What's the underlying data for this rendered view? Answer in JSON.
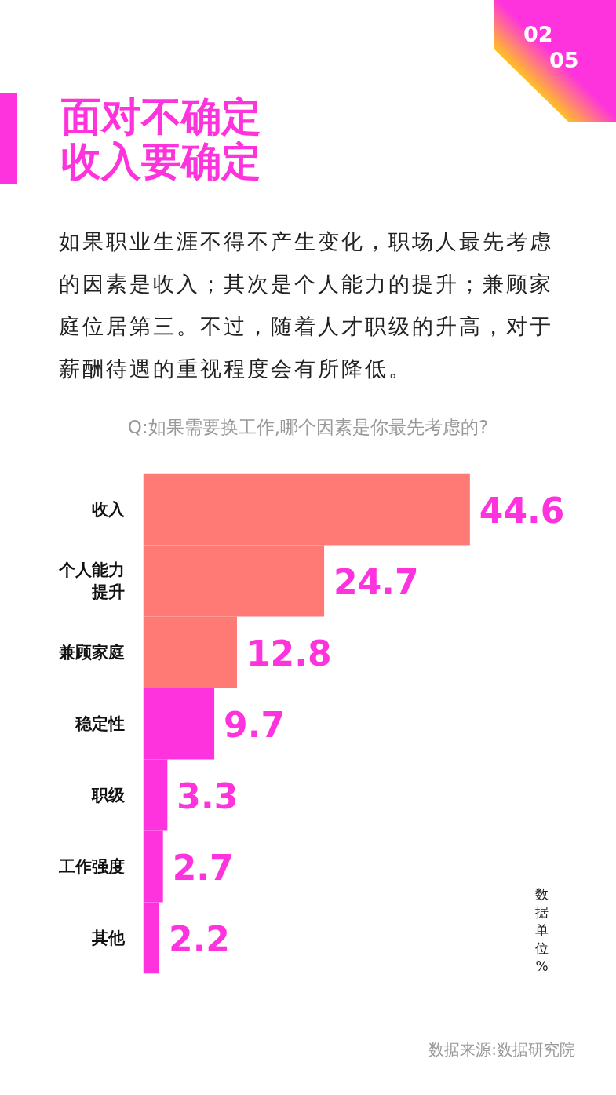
{
  "chart_data": {
    "type": "bar",
    "orientation": "horizontal",
    "title": "面对不确定收入要确定",
    "subtitle": "如果职业生涯不得不产生变化，职场人最先考虑的因素是收入；其次是个人能力的提升；兼顾家庭位居第三。不过，随着人才职级的升高，对于薪酬待遇的重视程度会有所降低。",
    "categories": [
      "收入",
      "个人能力提升",
      "兼顾家庭",
      "稳定性",
      "职级",
      "工作强度",
      "其他"
    ],
    "values": [
      44.6,
      24.7,
      12.8,
      9.7,
      3.3,
      2.7,
      2.2
    ],
    "colors": [
      "#ff7a75",
      "#ff7a75",
      "#ff7a75",
      "#ff33dd",
      "#ff33dd",
      "#ff33dd",
      "#ff33dd"
    ],
    "tick_labels": "y",
    "data_labels": true,
    "annotations": [
      "Q:如果需要换工作,哪个因素是你最先考虑的?",
      "数据单位%",
      "数据来源:数据研究院",
      "02",
      "05"
    ]
  }
}
